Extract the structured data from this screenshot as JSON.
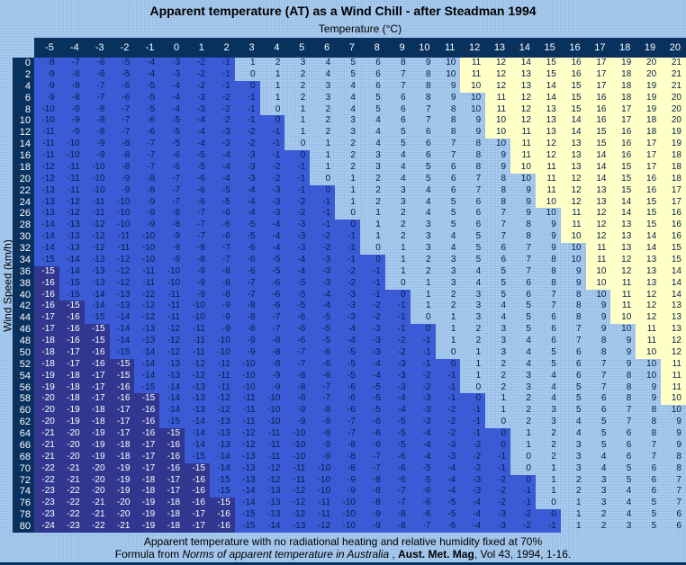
{
  "title": "Apparent temperature (AT) as a Wind Chill - after Steadman 1994",
  "chart_data": {
    "type": "heatmap",
    "xlabel": "Temperature (°C)",
    "ylabel": "Wind Speed (km/h)",
    "col_headers": [
      "-5",
      "-4",
      "-3",
      "-2",
      "-1",
      "0",
      "1",
      "2",
      "3",
      "4",
      "5",
      "6",
      "7",
      "8",
      "9",
      "10",
      "11",
      "12",
      "13",
      "14",
      "15",
      "16",
      "17",
      "18",
      "19",
      "20"
    ],
    "row_headers": [
      "0",
      "2",
      "4",
      "6",
      "8",
      "10",
      "12",
      "14",
      "16",
      "18",
      "20",
      "22",
      "24",
      "26",
      "28",
      "30",
      "32",
      "34",
      "36",
      "38",
      "40",
      "42",
      "44",
      "46",
      "48",
      "50",
      "52",
      "54",
      "56",
      "58",
      "60",
      "62",
      "64",
      "66",
      "68",
      "70",
      "72",
      "74",
      "76",
      "78",
      "80"
    ],
    "values": [
      [
        -8,
        -7,
        -6,
        -5,
        -4,
        -3,
        -2,
        -1,
        1,
        2,
        3,
        4,
        5,
        6,
        8,
        9,
        10,
        11,
        12,
        14,
        15,
        16,
        17,
        19,
        20,
        21
      ],
      [
        -9,
        -8,
        -6,
        -5,
        -4,
        -3,
        -2,
        -1,
        0,
        1,
        2,
        4,
        5,
        6,
        7,
        8,
        10,
        11,
        12,
        13,
        15,
        16,
        17,
        18,
        20,
        21
      ],
      [
        -9,
        -8,
        -7,
        -6,
        -5,
        -4,
        -2,
        -1,
        0,
        1,
        2,
        3,
        4,
        6,
        7,
        8,
        9,
        10,
        12,
        13,
        14,
        15,
        17,
        18,
        19,
        21
      ],
      [
        -9,
        -8,
        -7,
        -6,
        -5,
        -4,
        -3,
        -2,
        -1,
        1,
        2,
        3,
        4,
        5,
        6,
        8,
        9,
        10,
        11,
        12,
        14,
        15,
        16,
        18,
        19,
        20
      ],
      [
        -10,
        -9,
        -8,
        -7,
        -5,
        -4,
        -3,
        -2,
        -1,
        0,
        1,
        2,
        4,
        5,
        6,
        7,
        8,
        10,
        11,
        12,
        13,
        15,
        16,
        17,
        19,
        20
      ],
      [
        -10,
        -9,
        -8,
        -7,
        -6,
        -5,
        -4,
        -2,
        -1,
        0,
        1,
        2,
        3,
        4,
        6,
        7,
        8,
        9,
        10,
        12,
        13,
        14,
        16,
        17,
        18,
        20
      ],
      [
        -11,
        -9,
        -8,
        -7,
        -6,
        -5,
        -4,
        -3,
        -2,
        -1,
        1,
        2,
        3,
        4,
        5,
        6,
        8,
        9,
        10,
        11,
        13,
        14,
        15,
        16,
        18,
        19
      ],
      [
        -11,
        -10,
        -9,
        -8,
        -7,
        -5,
        -4,
        -3,
        -2,
        -1,
        0,
        1,
        2,
        4,
        5,
        6,
        7,
        8,
        10,
        11,
        12,
        13,
        15,
        16,
        17,
        19
      ],
      [
        -11,
        -10,
        -9,
        -8,
        -7,
        -6,
        -5,
        -4,
        -3,
        -1,
        0,
        1,
        2,
        3,
        4,
        6,
        7,
        8,
        9,
        11,
        12,
        13,
        14,
        16,
        17,
        18
      ],
      [
        -12,
        -11,
        -10,
        -8,
        -7,
        -6,
        -5,
        -4,
        -3,
        -2,
        -1,
        1,
        2,
        3,
        4,
        5,
        6,
        8,
        9,
        10,
        11,
        13,
        14,
        15,
        17,
        18
      ],
      [
        -12,
        -11,
        -10,
        -9,
        -8,
        -7,
        -6,
        -4,
        -3,
        -2,
        -1,
        0,
        1,
        2,
        4,
        5,
        6,
        7,
        8,
        10,
        11,
        12,
        14,
        15,
        16,
        18
      ],
      [
        -13,
        -11,
        -10,
        -9,
        -8,
        -7,
        -6,
        -5,
        -4,
        -3,
        -1,
        0,
        1,
        2,
        3,
        4,
        6,
        7,
        8,
        9,
        11,
        12,
        13,
        15,
        16,
        17
      ],
      [
        -13,
        -12,
        -11,
        -10,
        -9,
        -7,
        -6,
        -5,
        -4,
        -3,
        -2,
        -1,
        1,
        2,
        3,
        4,
        5,
        6,
        8,
        9,
        10,
        12,
        13,
        14,
        15,
        17
      ],
      [
        -13,
        -12,
        -11,
        -10,
        -9,
        -8,
        -7,
        -6,
        -4,
        -3,
        -2,
        -1,
        0,
        1,
        2,
        4,
        5,
        6,
        7,
        9,
        10,
        11,
        12,
        14,
        15,
        16
      ],
      [
        -14,
        -13,
        -12,
        -10,
        -9,
        -8,
        -7,
        -6,
        -5,
        -4,
        -3,
        -1,
        0,
        1,
        2,
        3,
        5,
        6,
        7,
        8,
        9,
        11,
        12,
        13,
        15,
        16
      ],
      [
        -14,
        -13,
        -12,
        -11,
        -10,
        -9,
        -7,
        -6,
        -5,
        -4,
        -3,
        -2,
        -1,
        1,
        2,
        3,
        4,
        5,
        7,
        8,
        9,
        10,
        12,
        13,
        14,
        16
      ],
      [
        -14,
        -13,
        -12,
        -11,
        -10,
        -9,
        -8,
        -7,
        -6,
        -4,
        -3,
        -2,
        -1,
        0,
        1,
        3,
        4,
        5,
        6,
        7,
        9,
        10,
        11,
        13,
        14,
        15
      ],
      [
        -15,
        -14,
        -13,
        -12,
        -10,
        -9,
        -8,
        -7,
        -6,
        -5,
        -4,
        -3,
        -1,
        0,
        1,
        2,
        3,
        5,
        6,
        7,
        8,
        10,
        11,
        12,
        13,
        15
      ],
      [
        -15,
        -14,
        -13,
        -12,
        -11,
        -10,
        -9,
        -8,
        -6,
        -5,
        -4,
        -3,
        -2,
        -1,
        1,
        2,
        3,
        4,
        5,
        7,
        8,
        9,
        10,
        12,
        13,
        14
      ],
      [
        -16,
        -15,
        -13,
        -12,
        -11,
        -10,
        -9,
        -8,
        -7,
        -6,
        -5,
        -3,
        -2,
        -1,
        0,
        1,
        3,
        4,
        5,
        6,
        8,
        9,
        10,
        11,
        13,
        14
      ],
      [
        -16,
        -15,
        -14,
        -13,
        -12,
        -11,
        -9,
        -8,
        -7,
        -6,
        -5,
        -4,
        -3,
        -1,
        0,
        1,
        2,
        3,
        5,
        6,
        7,
        8,
        10,
        11,
        12,
        14
      ],
      [
        -16,
        -15,
        -14,
        -13,
        -12,
        -11,
        -10,
        -9,
        -8,
        -6,
        -5,
        -4,
        -3,
        -2,
        -1,
        1,
        2,
        3,
        4,
        5,
        7,
        8,
        9,
        11,
        12,
        13
      ],
      [
        -17,
        -16,
        -15,
        -14,
        -12,
        -11,
        -10,
        -9,
        -8,
        -7,
        -6,
        -5,
        -3,
        -2,
        -1,
        0,
        1,
        3,
        4,
        5,
        6,
        8,
        9,
        10,
        12,
        13
      ],
      [
        -17,
        -16,
        -15,
        -14,
        -13,
        -12,
        -11,
        -9,
        -8,
        -7,
        -6,
        -5,
        -4,
        -3,
        -1,
        0,
        1,
        2,
        3,
        5,
        6,
        7,
        9,
        10,
        11,
        13
      ],
      [
        -18,
        -16,
        -15,
        -14,
        -13,
        -12,
        -11,
        -10,
        -9,
        -8,
        -6,
        -5,
        -4,
        -3,
        -2,
        -1,
        1,
        2,
        3,
        4,
        6,
        7,
        8,
        9,
        11,
        12
      ],
      [
        -18,
        -17,
        -16,
        -15,
        -14,
        -12,
        -11,
        -10,
        -9,
        -8,
        -7,
        -6,
        -5,
        -3,
        -2,
        -1,
        0,
        1,
        3,
        4,
        5,
        6,
        8,
        9,
        10,
        12
      ],
      [
        -18,
        -17,
        -16,
        -15,
        -14,
        -13,
        -12,
        -11,
        -10,
        -8,
        -7,
        -6,
        -5,
        -4,
        -3,
        -1,
        0,
        1,
        2,
        4,
        5,
        6,
        7,
        9,
        10,
        11
      ],
      [
        -19,
        -18,
        -17,
        -15,
        -14,
        -13,
        -12,
        -11,
        -10,
        -9,
        -8,
        -6,
        -5,
        -4,
        -3,
        -2,
        -1,
        1,
        2,
        3,
        4,
        6,
        7,
        8,
        10,
        11
      ],
      [
        -19,
        -18,
        -17,
        -16,
        -15,
        -14,
        -13,
        -11,
        -10,
        -9,
        -8,
        -7,
        -6,
        -5,
        -3,
        -2,
        -1,
        0,
        2,
        3,
        4,
        5,
        7,
        8,
        9,
        11
      ],
      [
        -20,
        -18,
        -17,
        -16,
        -15,
        -14,
        -13,
        -12,
        -11,
        -10,
        -8,
        -7,
        -6,
        -5,
        -4,
        -3,
        -1,
        0,
        1,
        2,
        4,
        5,
        6,
        8,
        9,
        10
      ],
      [
        -20,
        -19,
        -18,
        -17,
        -16,
        -14,
        -13,
        -12,
        -11,
        -10,
        -9,
        -8,
        -6,
        -5,
        -4,
        -3,
        -2,
        -1,
        1,
        2,
        3,
        5,
        6,
        7,
        8,
        10
      ],
      [
        -20,
        -19,
        -18,
        -17,
        -16,
        -15,
        -14,
        -13,
        -11,
        -10,
        -9,
        -8,
        -7,
        -6,
        -5,
        -3,
        -2,
        -1,
        0,
        2,
        3,
        4,
        5,
        7,
        8,
        9
      ],
      [
        -21,
        -20,
        -19,
        -17,
        -16,
        -15,
        -14,
        -13,
        -12,
        -11,
        -10,
        -8,
        -7,
        -6,
        -5,
        -4,
        -2,
        -1,
        0,
        1,
        2,
        4,
        5,
        6,
        8,
        9
      ],
      [
        -21,
        -20,
        -19,
        -18,
        -17,
        -16,
        -14,
        -13,
        -12,
        -11,
        -10,
        -9,
        -8,
        -6,
        -5,
        -4,
        -3,
        -2,
        0,
        1,
        2,
        3,
        5,
        6,
        7,
        9
      ],
      [
        -21,
        -20,
        -19,
        -18,
        -17,
        -16,
        -15,
        -14,
        -13,
        -11,
        -10,
        -9,
        -8,
        -7,
        -6,
        -4,
        -3,
        -2,
        -1,
        0,
        2,
        3,
        4,
        6,
        7,
        8
      ],
      [
        -22,
        -21,
        -20,
        -19,
        -17,
        -16,
        -15,
        -14,
        -13,
        -12,
        -11,
        -10,
        -8,
        -7,
        -6,
        -5,
        -4,
        -2,
        -1,
        0,
        1,
        3,
        4,
        5,
        6,
        8
      ],
      [
        -22,
        -21,
        -20,
        -19,
        -18,
        -17,
        -16,
        -15,
        -13,
        -12,
        -11,
        -10,
        -9,
        -8,
        -6,
        -5,
        -4,
        -3,
        -2,
        0,
        1,
        2,
        3,
        5,
        6,
        7
      ],
      [
        -23,
        -22,
        -20,
        -19,
        -18,
        -17,
        -16,
        -15,
        -14,
        -13,
        -12,
        -10,
        -9,
        -8,
        -7,
        -6,
        -4,
        -3,
        -2,
        -1,
        1,
        2,
        3,
        4,
        6,
        7
      ],
      [
        -23,
        -22,
        -21,
        -20,
        -19,
        -18,
        -16,
        -15,
        -14,
        -13,
        -12,
        -11,
        -10,
        -8,
        -7,
        -6,
        -5,
        -4,
        -2,
        -1,
        0,
        1,
        3,
        4,
        5,
        7
      ],
      [
        -23,
        -22,
        -21,
        -20,
        -19,
        -18,
        -17,
        -16,
        -15,
        -13,
        -12,
        -11,
        -10,
        -9,
        -8,
        -6,
        -5,
        -4,
        -3,
        -2,
        0,
        1,
        2,
        4,
        5,
        6
      ],
      [
        -24,
        -23,
        -22,
        -21,
        -19,
        -18,
        -17,
        -16,
        -15,
        -14,
        -13,
        -12,
        -10,
        -9,
        -8,
        -7,
        -6,
        -4,
        -3,
        -2,
        -1,
        1,
        2,
        3,
        5,
        6
      ]
    ],
    "cell_colors": [
      "rrrrrrrrlllllllllyyyyyyyyy",
      "rrrrrrrrlllllllllyyyyyyyyy",
      "rrrrrrrrrllllllllyyyyyyyyy",
      "rrrrrrrrrlllllllllyyyyyyyy",
      "rrrrrrrrrlllllllllyyyyyyyy",
      "rrrrrrrrrrllllllllyyyyyyyy",
      "rrrrrrrrrrllllllllyyyyyyyy",
      "rrrrrrrrrrlllllllllyyyyyyy",
      "rrrrrrrrrrrllllllllyyyyyyy",
      "rrrrrrrrrrrllllllllyyyyyyy",
      "rrrrrrrrrrrlllllllllyyyyyy",
      "rrrrrrrrrrrrllllllllyyyyyy",
      "rrrrrrrrrrrrllllllllyyyyyy",
      "rrrrrrrrrrrrlllllllllyyyyy",
      "rrrrrrrrrrrrrllllllllyyyyy",
      "rrrrrrrrrrrrrllllllllyyyyy",
      "rrrrrrrrrrrrrlllllllllyyyy",
      "rrrrrrrrrrrrrrllllllllyyyy",
      "drrrrrrrrrrrrrllllllllyyyy",
      "drrrrrrrrrrrrrllllllllyyyy",
      "drrrrrrrrrrrrrrllllllllyyy",
      "ddrrrrrrrrrrrrrllllllllyyy",
      "ddrrrrrrrrrrrrrllllllllyyy",
      "dddrrrrrrrrrrrrrllllllllyy",
      "dddrrrrrrrrrrrrrllllllllyy",
      "dddrrrrrrrrrrrrrllllllllyy",
      "ddddrrrrrrrrrrrrrlllllllly",
      "ddddrrrrrrrrrrrrrlllllllly",
      "ddddrrrrrrrrrrrrrlllllllly",
      "dddddrrrrrrrrrrrrrllllllly",
      "dddddrrrrrrrrrrrrrllllllll",
      "dddddrrrrrrrrrrrrrllllllll",
      "ddddddrrrrrrrrrrrrrlllllll",
      "ddddddrrrrrrrrrrrrrlllllll",
      "ddddddrrrrrrrrrrrrrlllllll",
      "dddddddrrrrrrrrrrrrlllllll",
      "dddddddrrrrrrrrrrrrrllllll",
      "dddddddrrrrrrrrrrrrrllllll",
      "ddddddddrrrrrrrrrrrrllllll",
      "ddddddddrrrrrrrrrrrrrlllll",
      "ddddddddrrrrrrrrrrrrrlllll"
    ]
  },
  "captions": {
    "line1": "Apparent temperature with no radiational heating and relative humidity fixed at 70%",
    "line2_segments": [
      {
        "text": "Formula from ",
        "style": "normal"
      },
      {
        "text": "Norms of apparent temperature in Australia",
        "style": "italic"
      },
      {
        "text": " , ",
        "style": "normal"
      },
      {
        "text": "Aust. Met. Mag",
        "style": "bold"
      },
      {
        "text": ", Vol 43, 1994, 1-16.",
        "style": "normal"
      }
    ]
  },
  "theme": {
    "page_light_blue": "#A8CBEE",
    "navy_header": "#08315E",
    "royal_blue_band": "#3B5BD6",
    "dark_blue_band": "#31378E",
    "pale_yellow_band": "#FFFFC8",
    "cell_text_navy": "#041E4A",
    "header_text_white": "#FFFFFF",
    "title_text": "#000000"
  }
}
